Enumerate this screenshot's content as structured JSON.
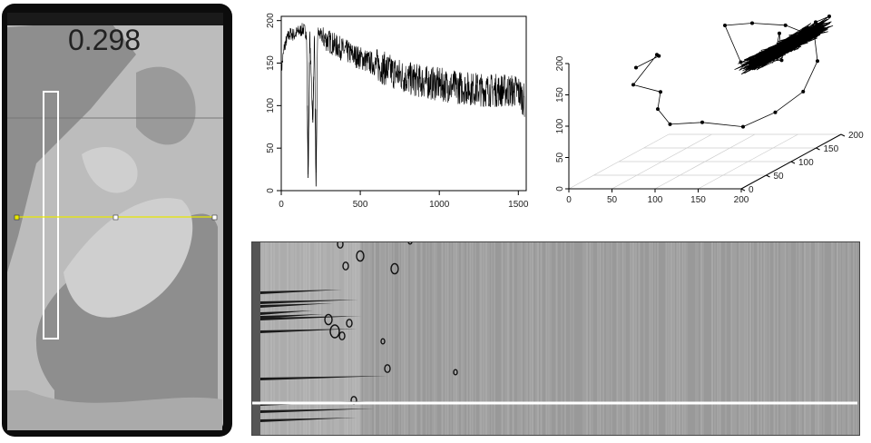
{
  "specimen": {
    "label_text": "0.298",
    "colors": {
      "frame": "#0a0a0a",
      "light_gray": "#bdbdbd",
      "mid_gray": "#8f8f8f",
      "roi_outline": "#ffffff",
      "profile_line": "#e8e800"
    }
  },
  "chart_data": [
    {
      "type": "line",
      "title": "",
      "xlabel": "",
      "ylabel": "",
      "xlim": [
        0,
        1550
      ],
      "ylim": [
        0,
        205
      ],
      "xticks": [
        "0",
        "500",
        "1000",
        "1500"
      ],
      "yticks": [
        "0",
        "50",
        "100",
        "150",
        "200"
      ],
      "grid": false,
      "series": [
        {
          "color": "#000000",
          "x": [
            0,
            20,
            40,
            60,
            80,
            100,
            120,
            140,
            160,
            170,
            180,
            200,
            210,
            220,
            230,
            240,
            260,
            300,
            350,
            400,
            450,
            500,
            600,
            700,
            800,
            900,
            1000,
            1100,
            1200,
            1300,
            1400,
            1500,
            1540
          ],
          "y": [
            140,
            170,
            180,
            185,
            183,
            186,
            188,
            190,
            185,
            15,
            185,
            80,
            188,
            5,
            186,
            185,
            180,
            176,
            170,
            165,
            160,
            156,
            148,
            140,
            132,
            128,
            125,
            122,
            120,
            118,
            118,
            117,
            105
          ]
        }
      ]
    },
    {
      "type": "scatter",
      "title": "",
      "xlabel": "",
      "ylabel": "",
      "zlabel": "",
      "xlim": [
        0,
        200
      ],
      "ylim": [
        0,
        200
      ],
      "zlim": [
        0,
        200
      ],
      "xticks": [
        "0",
        "50",
        "100",
        "150",
        "200"
      ],
      "yticks": [
        "0",
        "50",
        "100",
        "150",
        "200"
      ],
      "zticks": [
        "0",
        "50",
        "100",
        "150",
        "200"
      ],
      "grid": true,
      "points": [
        [
          20,
          100,
          150
        ],
        [
          35,
          120,
          160
        ],
        [
          50,
          90,
          175
        ],
        [
          40,
          60,
          140
        ],
        [
          60,
          80,
          120
        ],
        [
          80,
          40,
          110
        ],
        [
          100,
          30,
          90
        ],
        [
          120,
          60,
          80
        ],
        [
          150,
          90,
          60
        ],
        [
          170,
          120,
          70
        ],
        [
          185,
          150,
          90
        ],
        [
          190,
          170,
          130
        ],
        [
          175,
          190,
          160
        ],
        [
          150,
          175,
          185
        ],
        [
          120,
          160,
          195
        ],
        [
          100,
          140,
          200
        ],
        [
          130,
          120,
          150
        ],
        [
          160,
          150,
          140
        ],
        [
          140,
          180,
          170
        ],
        [
          165,
          130,
          165
        ],
        [
          170,
          150,
          175
        ],
        [
          180,
          160,
          185
        ],
        [
          190,
          170,
          180
        ],
        [
          175,
          155,
          170
        ],
        [
          160,
          145,
          160
        ],
        [
          185,
          175,
          190
        ],
        [
          195,
          185,
          195
        ],
        [
          150,
          140,
          150
        ],
        [
          145,
          130,
          155
        ],
        [
          180,
          165,
          178
        ]
      ],
      "dense_cluster_center": [
        170,
        155,
        170
      ],
      "dense_cluster_size": 800
    },
    {
      "type": "heatmap",
      "title": "",
      "description_colors": {
        "background": "#9a9a9a",
        "contour": "#111111",
        "marker_line": "#ffffff"
      }
    }
  ]
}
